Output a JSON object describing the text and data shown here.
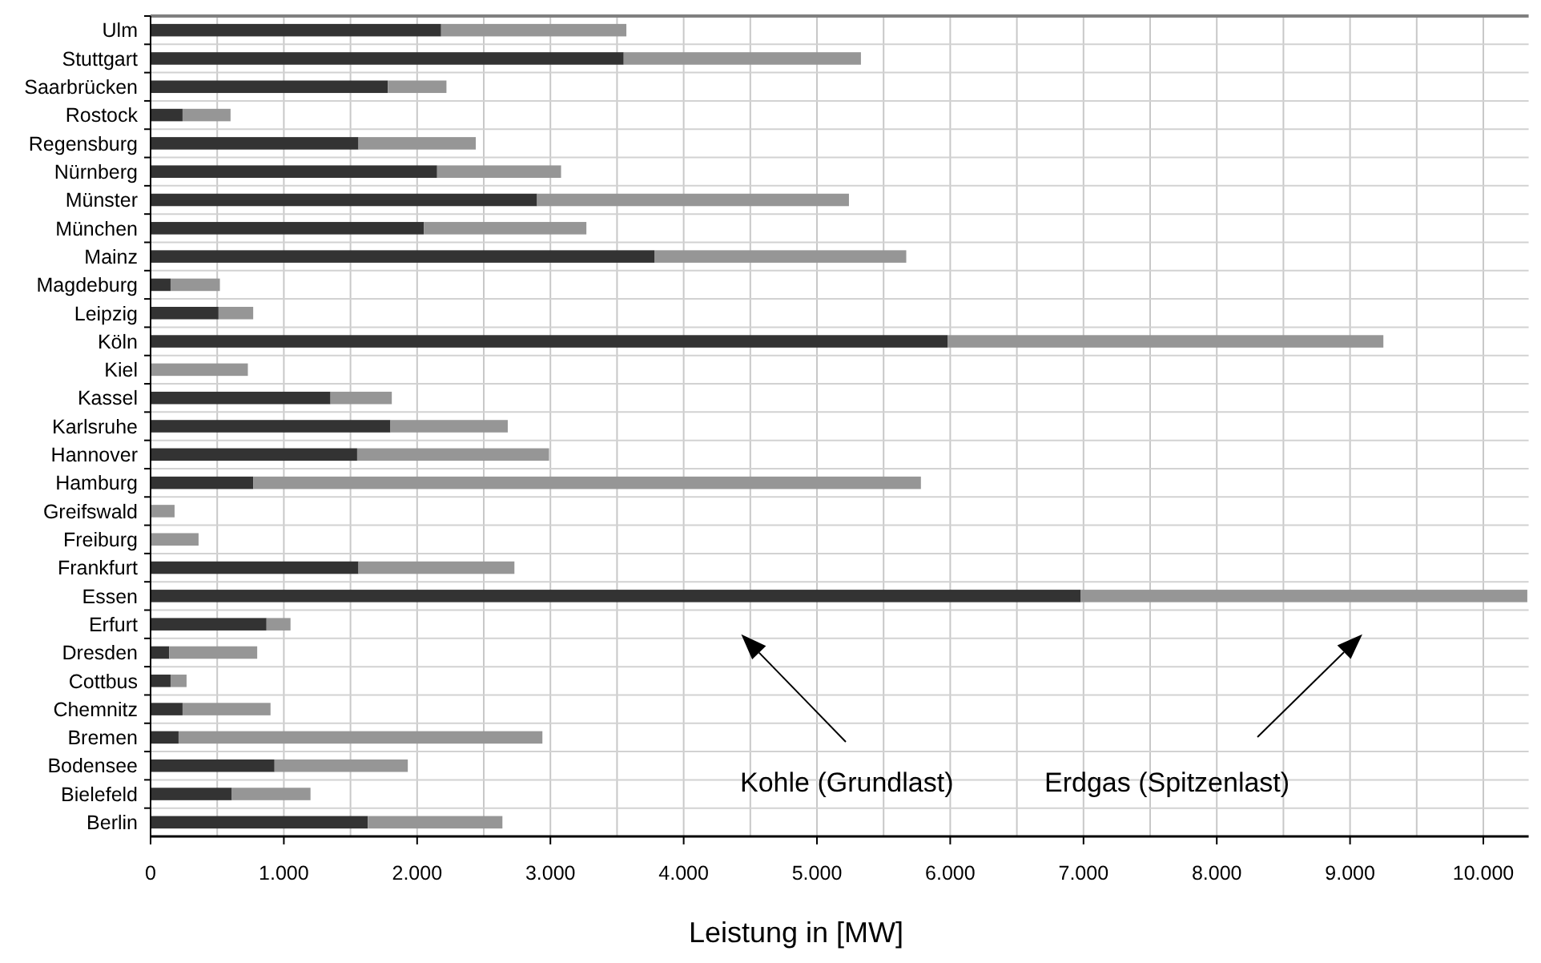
{
  "chart_data": {
    "type": "bar",
    "orientation": "horizontal",
    "stacked": true,
    "xlabel": "Leistung in [MW]",
    "categories": [
      "Ulm",
      "Stuttgart",
      "Saarbrücken",
      "Rostock",
      "Regensburg",
      "Nürnberg",
      "Münster",
      "München",
      "Mainz",
      "Magdeburg",
      "Leipzig",
      "Köln",
      "Kiel",
      "Kassel",
      "Karlsruhe",
      "Hannover",
      "Hamburg",
      "Greifswald",
      "Freiburg",
      "Frankfurt",
      "Essen",
      "Erfurt",
      "Dresden",
      "Cottbus",
      "Chemnitz",
      "Bremen",
      "Bodensee",
      "Bielefeld",
      "Berlin"
    ],
    "series": [
      {
        "name": "Kohle (Grundlast)",
        "color": "#333333",
        "values": [
          2180,
          3550,
          1780,
          240,
          1560,
          2150,
          2900,
          2050,
          3780,
          150,
          510,
          5980,
          0,
          1350,
          1800,
          1550,
          770,
          0,
          0,
          1560,
          6980,
          870,
          140,
          150,
          240,
          210,
          930,
          610,
          1630
        ]
      },
      {
        "name": "Erdgas (Spitzenlast)",
        "color": "#969696",
        "values": [
          1390,
          1780,
          440,
          360,
          880,
          930,
          2340,
          1220,
          1890,
          370,
          260,
          3270,
          730,
          460,
          880,
          1440,
          5010,
          180,
          360,
          1170,
          3350,
          180,
          660,
          120,
          660,
          2730,
          1000,
          590,
          1010
        ]
      }
    ],
    "xlim": [
      0,
      10340
    ],
    "xticks": [
      0,
      {
        "value": 500,
        "label": null
      },
      {
        "value": 1000,
        "label": "1.000"
      },
      {
        "value": 1500,
        "label": null
      },
      {
        "value": 2000,
        "label": "2.000"
      },
      {
        "value": 2500,
        "label": null
      },
      {
        "value": 3000,
        "label": "3.000"
      },
      {
        "value": 3500,
        "label": null
      },
      {
        "value": 4000,
        "label": "4.000"
      },
      {
        "value": 4500,
        "label": null
      },
      {
        "value": 5000,
        "label": "5.000"
      },
      {
        "value": 5500,
        "label": null
      },
      {
        "value": 6000,
        "label": "6.000"
      },
      {
        "value": 6500,
        "label": null
      },
      {
        "value": 7000,
        "label": "7.000"
      },
      {
        "value": 7500,
        "label": null
      },
      {
        "value": 8000,
        "label": "8.000"
      },
      {
        "value": 8500,
        "label": null
      },
      {
        "value": 9000,
        "label": "9.000"
      },
      {
        "value": 9500,
        "label": null
      },
      {
        "value": 10000,
        "label": "10.000"
      }
    ],
    "grid": true
  }
}
